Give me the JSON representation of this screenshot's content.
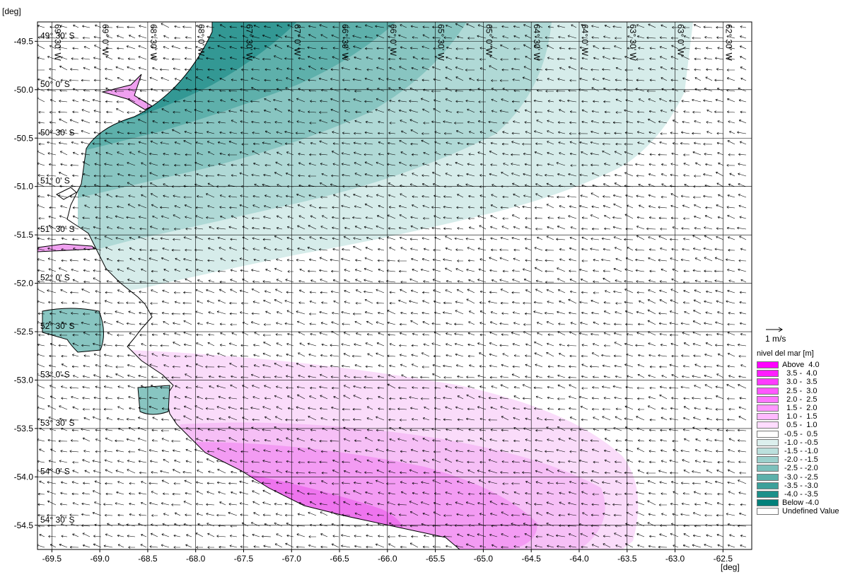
{
  "map": {
    "y_unit_label": "[deg]",
    "x_unit_label": "[deg]",
    "extent": {
      "lon": [
        -69.65,
        -62.2
      ],
      "lat": [
        -54.75,
        -49.3
      ]
    },
    "x_ticks": [
      {
        "v": -69.5,
        "label": "-69.5"
      },
      {
        "v": -69.0,
        "label": "-69.0"
      },
      {
        "v": -68.5,
        "label": "-68.5"
      },
      {
        "v": -68.0,
        "label": "-68.0"
      },
      {
        "v": -67.5,
        "label": "-67.5"
      },
      {
        "v": -67.0,
        "label": "-67.0"
      },
      {
        "v": -66.5,
        "label": "-66.5"
      },
      {
        "v": -66.0,
        "label": "-66.0"
      },
      {
        "v": -65.5,
        "label": "-65.5"
      },
      {
        "v": -65.0,
        "label": "-65.0"
      },
      {
        "v": -64.5,
        "label": "-64.5"
      },
      {
        "v": -64.0,
        "label": "-64.0"
      },
      {
        "v": -63.5,
        "label": "-63.5"
      },
      {
        "v": -63.0,
        "label": "-63.0"
      },
      {
        "v": -62.5,
        "label": "-62.5"
      }
    ],
    "y_ticks": [
      {
        "v": -49.5,
        "label": "-49.5"
      },
      {
        "v": -50.0,
        "label": "-50.0"
      },
      {
        "v": -50.5,
        "label": "-50.5"
      },
      {
        "v": -51.0,
        "label": "-51.0"
      },
      {
        "v": -51.5,
        "label": "-51.5"
      },
      {
        "v": -52.0,
        "label": "-52.0"
      },
      {
        "v": -52.5,
        "label": "-52.5"
      },
      {
        "v": -53.0,
        "label": "-53.0"
      },
      {
        "v": -53.5,
        "label": "-53.5"
      },
      {
        "v": -54.0,
        "label": "-54.0"
      },
      {
        "v": -54.5,
        "label": "-54.5"
      }
    ],
    "lat_grid_labels": [
      {
        "v": -49.5,
        "label": "49° 30' S"
      },
      {
        "v": -50.0,
        "label": "50° 0' S"
      },
      {
        "v": -50.5,
        "label": "50° 30' S"
      },
      {
        "v": -51.0,
        "label": "51° 0' S"
      },
      {
        "v": -51.5,
        "label": "51° 30' S"
      },
      {
        "v": -52.0,
        "label": "52° 0' S"
      },
      {
        "v": -52.5,
        "label": "52° 30' S"
      },
      {
        "v": -53.0,
        "label": "53° 0' S"
      },
      {
        "v": -53.5,
        "label": "53° 30' S"
      },
      {
        "v": -54.0,
        "label": "54° 0' S"
      },
      {
        "v": -54.5,
        "label": "54° 30' S"
      }
    ],
    "lon_grid_labels": [
      {
        "v": -69.5,
        "label": "69° 30' W"
      },
      {
        "v": -69.0,
        "label": "69° 0' W"
      },
      {
        "v": -68.5,
        "label": "68° 30' W"
      },
      {
        "v": -68.0,
        "label": "68° 0' W"
      },
      {
        "v": -67.5,
        "label": "67° 30' W"
      },
      {
        "v": -67.0,
        "label": "67° 0' W"
      },
      {
        "v": -66.5,
        "label": "66° 30' W"
      },
      {
        "v": -66.0,
        "label": "66° 0' W"
      },
      {
        "v": -65.5,
        "label": "65° 30' W"
      },
      {
        "v": -65.0,
        "label": "65° 0' W"
      },
      {
        "v": -64.5,
        "label": "64° 30' W"
      },
      {
        "v": -64.0,
        "label": "64° 0' W"
      },
      {
        "v": -63.5,
        "label": "63° 30' W"
      },
      {
        "v": -63.0,
        "label": "63° 0' W"
      },
      {
        "v": -62.5,
        "label": "62° 30' W"
      }
    ],
    "colors": {
      "land": "#ffffff",
      "coast": "#000000",
      "grid": "#000000",
      "neg_1": "#d6ecea",
      "neg_2": "#b0d9d6",
      "neg_3": "#88c5c1",
      "neg_4": "#5eb0ab",
      "neg_5": "#339894",
      "pos_1": "#fadcfa",
      "pos_2": "#f6bff6",
      "pos_3": "#f39bf3",
      "pos_4": "#ee74ee"
    }
  },
  "legend": {
    "vector_scale_label": "1 m/s",
    "title": "nivel del mar [m]",
    "classes": [
      {
        "label": "Above  4.0",
        "color": "#ff00ff"
      },
      {
        "label": "  3.5 -  4.0",
        "color": "#ff1dff"
      },
      {
        "label": "  3.0 -  3.5",
        "color": "#ff3aff"
      },
      {
        "label": "  2.5 -  3.0",
        "color": "#ff58ff"
      },
      {
        "label": "  2.0 -  2.5",
        "color": "#ff77ff"
      },
      {
        "label": "  1.5 -  2.0",
        "color": "#ff98ff"
      },
      {
        "label": "  1.0 -  1.5",
        "color": "#ffbaff"
      },
      {
        "label": "  0.5 -  1.0",
        "color": "#ffdcff"
      },
      {
        "label": " -0.5 -  0.5",
        "color": "#ffffff"
      },
      {
        "label": " -1.0 - -0.5",
        "color": "#dcefed"
      },
      {
        "label": " -1.5 - -1.0",
        "color": "#bce0dd"
      },
      {
        "label": " -2.0 - -1.5",
        "color": "#9cd0cc"
      },
      {
        "label": " -2.5 - -2.0",
        "color": "#7cc0bb"
      },
      {
        "label": " -3.0 - -2.5",
        "color": "#5cb0aa"
      },
      {
        "label": " -3.5 - -3.0",
        "color": "#3ca09a"
      },
      {
        "label": " -4.0 - -3.5",
        "color": "#1c908a"
      },
      {
        "label": "Below -4.0",
        "color": "#00807a"
      },
      {
        "label": "Undefined Value",
        "color": "#ffffff"
      }
    ]
  }
}
